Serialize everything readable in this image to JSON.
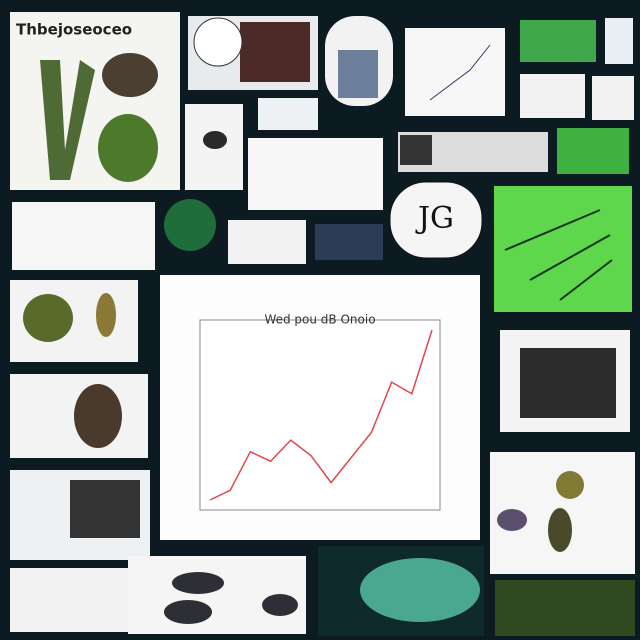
{
  "header": {
    "title": "Thbejoseoceo"
  },
  "badge": {
    "label": "JG"
  },
  "center_chart": {
    "type": "line",
    "title": "Wed pou dB Onoio",
    "color": "#e0474c",
    "values": [
      0.6,
      1.1,
      3.1,
      2.6,
      3.7,
      2.9,
      1.5,
      2.8,
      4.1,
      6.7,
      6.1,
      9.4
    ]
  }
}
